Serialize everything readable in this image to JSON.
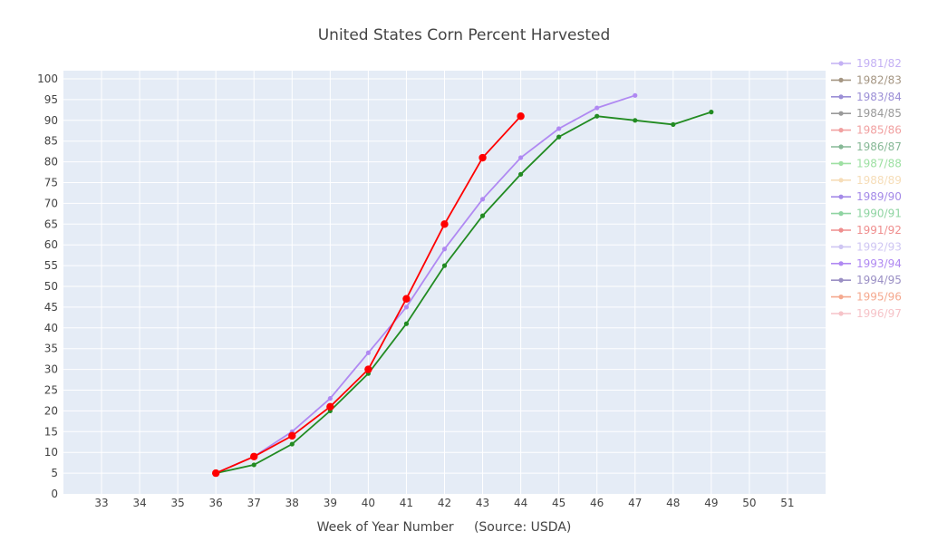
{
  "chart_data": {
    "type": "line",
    "title": "United States Corn Percent Harvested",
    "xlabel": "Week of Year Number     (Source: USDA)",
    "ylabel": "",
    "xlim": [
      32,
      52
    ],
    "ylim": [
      0,
      100
    ],
    "x_ticks": [
      33,
      34,
      35,
      36,
      37,
      38,
      39,
      40,
      41,
      42,
      43,
      44,
      45,
      46,
      47,
      48,
      49,
      50,
      51
    ],
    "y_ticks": [
      0,
      5,
      10,
      15,
      20,
      25,
      30,
      35,
      40,
      45,
      50,
      55,
      60,
      65,
      70,
      75,
      80,
      85,
      90,
      95,
      100
    ],
    "grid": true,
    "plot_background": "#e5ecf6",
    "legend_position": "right",
    "series": [
      {
        "name": "1981/82",
        "color": "#c4b1f4",
        "marker": "dot",
        "x": [],
        "y": []
      },
      {
        "name": "1982/83",
        "color": "#a59683",
        "marker": "dot",
        "x": [],
        "y": []
      },
      {
        "name": "1983/84",
        "color": "#9b8fd6",
        "marker": "dot",
        "x": [],
        "y": []
      },
      {
        "name": "1984/85",
        "color": "#9a9a9a",
        "marker": "dot",
        "x": [],
        "y": []
      },
      {
        "name": "1985/86",
        "color": "#f1a1a1",
        "marker": "dot",
        "x": [],
        "y": []
      },
      {
        "name": "1986/87",
        "color": "#86b896",
        "marker": "dot",
        "x": [],
        "y": []
      },
      {
        "name": "1987/88",
        "color": "#9ee0a3",
        "marker": "dot",
        "x": [],
        "y": []
      },
      {
        "name": "1988/89",
        "color": "#f6ddb8",
        "marker": "dot",
        "x": [],
        "y": []
      },
      {
        "name": "1989/90",
        "color": "#a48ae8",
        "marker": "dot",
        "x": [],
        "y": []
      },
      {
        "name": "1990/91",
        "color": "#8fd4a2",
        "marker": "dot",
        "x": [],
        "y": []
      },
      {
        "name": "1991/92",
        "color": "#ef8e8e",
        "marker": "dot",
        "x": [],
        "y": []
      },
      {
        "name": "1992/93",
        "color": "#cfc6f3",
        "marker": "dot",
        "x": [],
        "y": []
      },
      {
        "name": "1993/94",
        "color": "#b089f2",
        "marker": "dot",
        "x": [
          36,
          37,
          38,
          39,
          40,
          41,
          42,
          43,
          44,
          45,
          46,
          47
        ],
        "y": [
          5,
          9,
          15,
          23,
          34,
          45,
          59,
          71,
          81,
          88,
          93,
          96
        ]
      },
      {
        "name": "1994/95",
        "color": "#9a8fc4",
        "marker": "dot",
        "x": [],
        "y": []
      },
      {
        "name": "1995/96",
        "color": "#f5a98f",
        "marker": "dot",
        "x": [],
        "y": []
      },
      {
        "name": "1996/97",
        "color": "#f6c3c8",
        "marker": "dot",
        "x": [],
        "y": []
      },
      {
        "name": "",
        "color": "#228b22",
        "marker": "dot",
        "x": [
          36,
          37,
          38,
          39,
          40,
          41,
          42,
          43,
          44,
          45,
          46,
          47,
          48,
          49
        ],
        "y": [
          5,
          7,
          12,
          20,
          29,
          41,
          55,
          67,
          77,
          86,
          91,
          90,
          89,
          92
        ]
      },
      {
        "name": "",
        "color": "#ff0000",
        "marker": "large-dot",
        "x": [
          36,
          37,
          38,
          39,
          40,
          41,
          42,
          43,
          44
        ],
        "y": [
          5,
          9,
          14,
          21,
          30,
          47,
          65,
          81,
          91
        ]
      }
    ]
  }
}
